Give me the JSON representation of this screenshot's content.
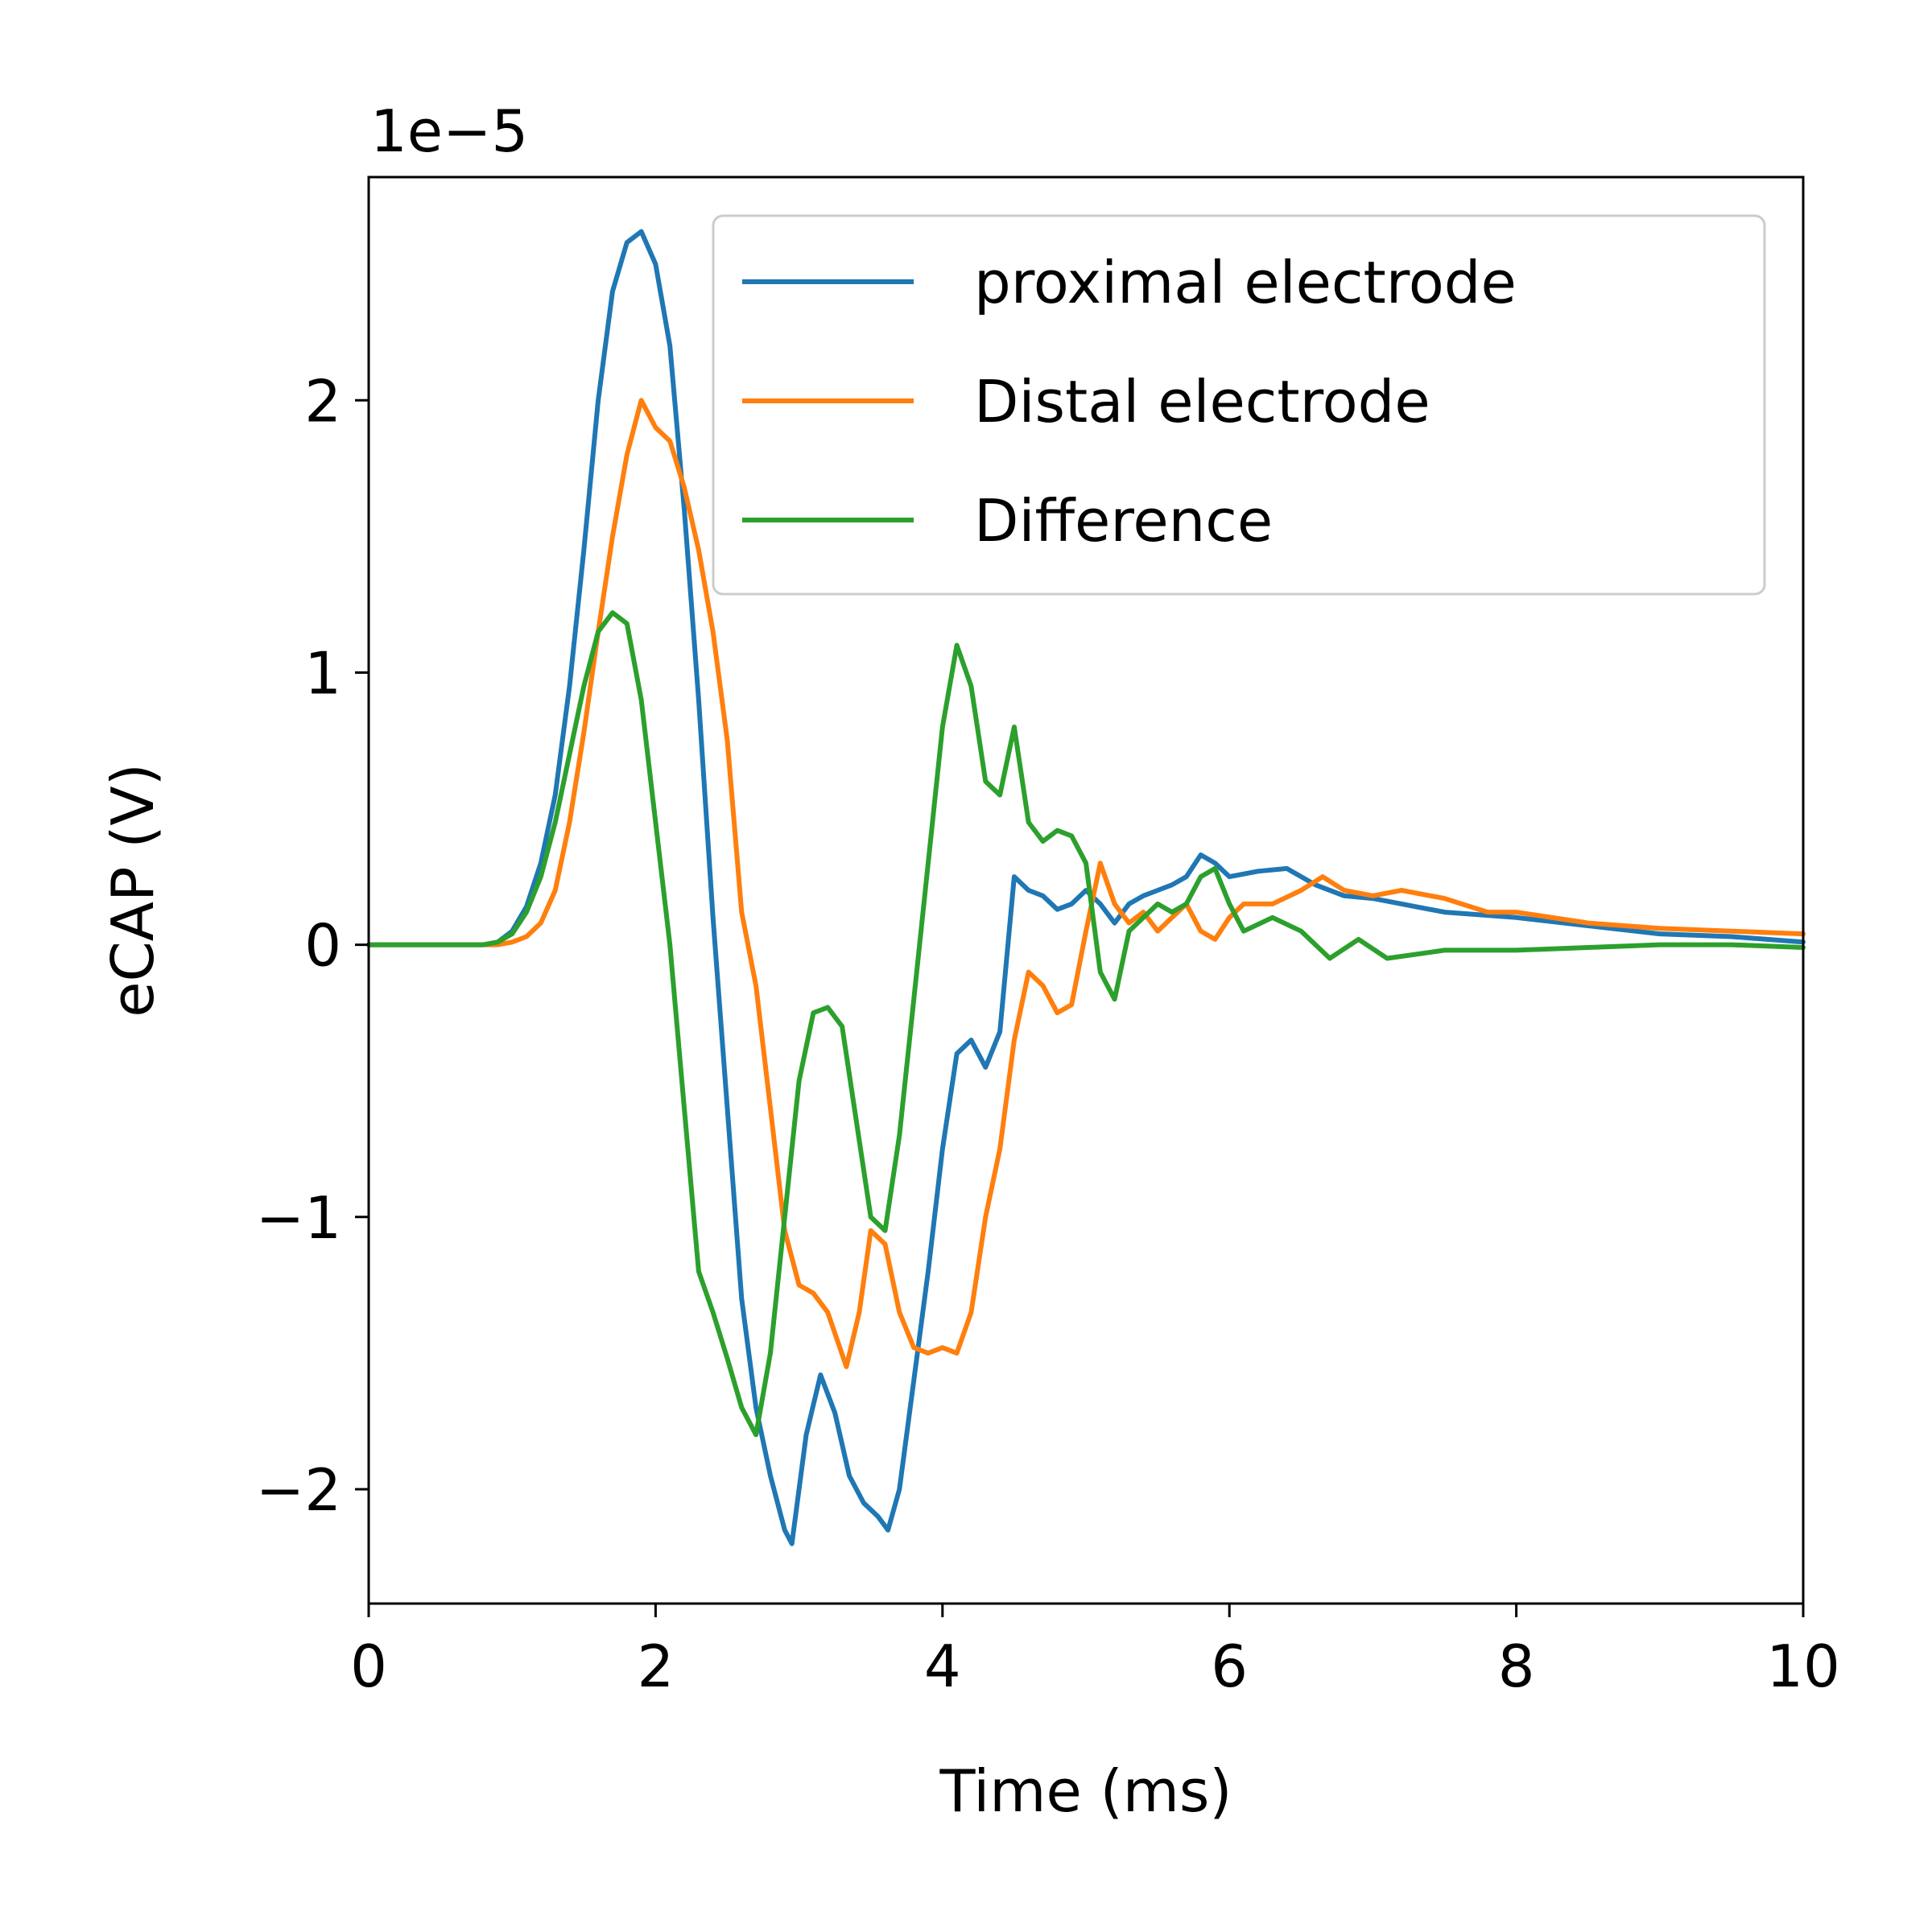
{
  "chart_data": {
    "type": "line",
    "xlabel": "Time (ms)",
    "ylabel": "eCAP (V)",
    "offset_text": "1e−5",
    "xlim": [
      0,
      10
    ],
    "ylim": [
      -2.42,
      2.82
    ],
    "x_ticks": [
      0,
      2,
      4,
      6,
      8,
      10
    ],
    "x_tick_labels": [
      "0",
      "2",
      "4",
      "6",
      "8",
      "10"
    ],
    "y_ticks": [
      -2,
      -1,
      0,
      1,
      2
    ],
    "y_tick_labels": [
      "−2",
      "−1",
      "0",
      "1",
      "2"
    ],
    "y_scale_note": "values in units of 1e-5 V",
    "grid": false,
    "legend_position": "upper-right",
    "series": [
      {
        "name": "proximal electrode",
        "color": "#1f77b4",
        "points": [
          [
            0,
            0
          ],
          [
            0.5,
            0
          ],
          [
            0.8,
            0
          ],
          [
            0.9,
            0.01
          ],
          [
            1.0,
            0.05
          ],
          [
            1.1,
            0.14
          ],
          [
            1.2,
            0.3
          ],
          [
            1.3,
            0.55
          ],
          [
            1.4,
            0.95
          ],
          [
            1.5,
            1.45
          ],
          [
            1.6,
            2.0
          ],
          [
            1.7,
            2.4
          ],
          [
            1.8,
            2.58
          ],
          [
            1.9,
            2.62
          ],
          [
            2.0,
            2.5
          ],
          [
            2.1,
            2.2
          ],
          [
            2.2,
            1.6
          ],
          [
            2.3,
            0.9
          ],
          [
            2.4,
            0.1
          ],
          [
            2.5,
            -0.6
          ],
          [
            2.6,
            -1.3
          ],
          [
            2.7,
            -1.7
          ],
          [
            2.8,
            -1.95
          ],
          [
            2.9,
            -2.15
          ],
          [
            2.95,
            -2.2
          ],
          [
            3.05,
            -1.8
          ],
          [
            3.15,
            -1.58
          ],
          [
            3.25,
            -1.72
          ],
          [
            3.35,
            -1.95
          ],
          [
            3.45,
            -2.05
          ],
          [
            3.55,
            -2.1
          ],
          [
            3.62,
            -2.15
          ],
          [
            3.7,
            -2.0
          ],
          [
            3.8,
            -1.6
          ],
          [
            3.9,
            -1.2
          ],
          [
            4.0,
            -0.75
          ],
          [
            4.1,
            -0.4
          ],
          [
            4.2,
            -0.35
          ],
          [
            4.3,
            -0.45
          ],
          [
            4.4,
            -0.32
          ],
          [
            4.5,
            0.25
          ],
          [
            4.6,
            0.2
          ],
          [
            4.7,
            0.18
          ],
          [
            4.8,
            0.13
          ],
          [
            4.9,
            0.15
          ],
          [
            5.0,
            0.2
          ],
          [
            5.1,
            0.15
          ],
          [
            5.2,
            0.08
          ],
          [
            5.3,
            0.15
          ],
          [
            5.4,
            0.18
          ],
          [
            5.5,
            0.2
          ],
          [
            5.6,
            0.22
          ],
          [
            5.7,
            0.25
          ],
          [
            5.8,
            0.33
          ],
          [
            5.9,
            0.3
          ],
          [
            6.0,
            0.25
          ],
          [
            6.2,
            0.27
          ],
          [
            6.4,
            0.28
          ],
          [
            6.6,
            0.22
          ],
          [
            6.8,
            0.18
          ],
          [
            7.0,
            0.17
          ],
          [
            7.5,
            0.12
          ],
          [
            8.0,
            0.1
          ],
          [
            8.5,
            0.07
          ],
          [
            9.0,
            0.04
          ],
          [
            9.5,
            0.03
          ],
          [
            10.0,
            0.01
          ]
        ]
      },
      {
        "name": "Distal electrode",
        "color": "#ff7f0e",
        "points": [
          [
            0,
            0
          ],
          [
            0.9,
            0
          ],
          [
            1.0,
            0.01
          ],
          [
            1.1,
            0.03
          ],
          [
            1.2,
            0.08
          ],
          [
            1.3,
            0.2
          ],
          [
            1.4,
            0.45
          ],
          [
            1.5,
            0.78
          ],
          [
            1.6,
            1.15
          ],
          [
            1.7,
            1.5
          ],
          [
            1.8,
            1.8
          ],
          [
            1.9,
            2.0
          ],
          [
            2.0,
            1.9
          ],
          [
            2.1,
            1.85
          ],
          [
            2.2,
            1.68
          ],
          [
            2.3,
            1.45
          ],
          [
            2.4,
            1.15
          ],
          [
            2.5,
            0.75
          ],
          [
            2.6,
            0.12
          ],
          [
            2.7,
            -0.15
          ],
          [
            2.8,
            -0.6
          ],
          [
            2.9,
            -1.05
          ],
          [
            3.0,
            -1.25
          ],
          [
            3.1,
            -1.28
          ],
          [
            3.2,
            -1.35
          ],
          [
            3.33,
            -1.55
          ],
          [
            3.42,
            -1.35
          ],
          [
            3.5,
            -1.05
          ],
          [
            3.6,
            -1.1
          ],
          [
            3.7,
            -1.35
          ],
          [
            3.8,
            -1.48
          ],
          [
            3.9,
            -1.5
          ],
          [
            4.0,
            -1.48
          ],
          [
            4.1,
            -1.5
          ],
          [
            4.2,
            -1.35
          ],
          [
            4.3,
            -1.0
          ],
          [
            4.4,
            -0.75
          ],
          [
            4.5,
            -0.35
          ],
          [
            4.6,
            -0.1
          ],
          [
            4.7,
            -0.15
          ],
          [
            4.8,
            -0.25
          ],
          [
            4.9,
            -0.22
          ],
          [
            5.0,
            0.05
          ],
          [
            5.1,
            0.3
          ],
          [
            5.2,
            0.15
          ],
          [
            5.3,
            0.08
          ],
          [
            5.4,
            0.12
          ],
          [
            5.5,
            0.05
          ],
          [
            5.6,
            0.1
          ],
          [
            5.7,
            0.15
          ],
          [
            5.8,
            0.05
          ],
          [
            5.9,
            0.02
          ],
          [
            6.0,
            0.1
          ],
          [
            6.1,
            0.15
          ],
          [
            6.3,
            0.15
          ],
          [
            6.5,
            0.2
          ],
          [
            6.65,
            0.25
          ],
          [
            6.8,
            0.2
          ],
          [
            7.0,
            0.18
          ],
          [
            7.2,
            0.2
          ],
          [
            7.5,
            0.17
          ],
          [
            7.8,
            0.12
          ],
          [
            8.0,
            0.12
          ],
          [
            8.5,
            0.08
          ],
          [
            9.0,
            0.06
          ],
          [
            9.5,
            0.05
          ],
          [
            10.0,
            0.04
          ]
        ]
      },
      {
        "name": "Difference",
        "color": "#2ca02c",
        "points": [
          [
            0,
            0
          ],
          [
            0.8,
            0
          ],
          [
            0.9,
            0.01
          ],
          [
            1.0,
            0.04
          ],
          [
            1.1,
            0.12
          ],
          [
            1.2,
            0.25
          ],
          [
            1.3,
            0.45
          ],
          [
            1.4,
            0.7
          ],
          [
            1.5,
            0.95
          ],
          [
            1.6,
            1.15
          ],
          [
            1.7,
            1.22
          ],
          [
            1.8,
            1.18
          ],
          [
            1.9,
            0.9
          ],
          [
            2.0,
            0.45
          ],
          [
            2.1,
            0.0
          ],
          [
            2.2,
            -0.6
          ],
          [
            2.3,
            -1.2
          ],
          [
            2.4,
            -1.35
          ],
          [
            2.5,
            -1.52
          ],
          [
            2.6,
            -1.7
          ],
          [
            2.7,
            -1.8
          ],
          [
            2.8,
            -1.5
          ],
          [
            2.9,
            -1.0
          ],
          [
            3.0,
            -0.5
          ],
          [
            3.1,
            -0.25
          ],
          [
            3.2,
            -0.23
          ],
          [
            3.3,
            -0.3
          ],
          [
            3.4,
            -0.65
          ],
          [
            3.5,
            -1.0
          ],
          [
            3.6,
            -1.05
          ],
          [
            3.7,
            -0.7
          ],
          [
            3.8,
            -0.2
          ],
          [
            3.9,
            0.3
          ],
          [
            4.0,
            0.8
          ],
          [
            4.1,
            1.1
          ],
          [
            4.2,
            0.95
          ],
          [
            4.3,
            0.6
          ],
          [
            4.4,
            0.55
          ],
          [
            4.5,
            0.8
          ],
          [
            4.6,
            0.45
          ],
          [
            4.7,
            0.38
          ],
          [
            4.8,
            0.42
          ],
          [
            4.9,
            0.4
          ],
          [
            5.0,
            0.3
          ],
          [
            5.1,
            -0.1
          ],
          [
            5.2,
            -0.2
          ],
          [
            5.3,
            0.05
          ],
          [
            5.4,
            0.1
          ],
          [
            5.5,
            0.15
          ],
          [
            5.6,
            0.12
          ],
          [
            5.7,
            0.15
          ],
          [
            5.8,
            0.25
          ],
          [
            5.9,
            0.28
          ],
          [
            6.0,
            0.15
          ],
          [
            6.1,
            0.05
          ],
          [
            6.3,
            0.1
          ],
          [
            6.5,
            0.05
          ],
          [
            6.7,
            -0.05
          ],
          [
            6.9,
            0.02
          ],
          [
            7.1,
            -0.05
          ],
          [
            7.5,
            -0.02
          ],
          [
            8.0,
            -0.02
          ],
          [
            8.5,
            -0.01
          ],
          [
            9.0,
            0.0
          ],
          [
            9.5,
            0.0
          ],
          [
            10.0,
            -0.01
          ]
        ]
      }
    ]
  }
}
